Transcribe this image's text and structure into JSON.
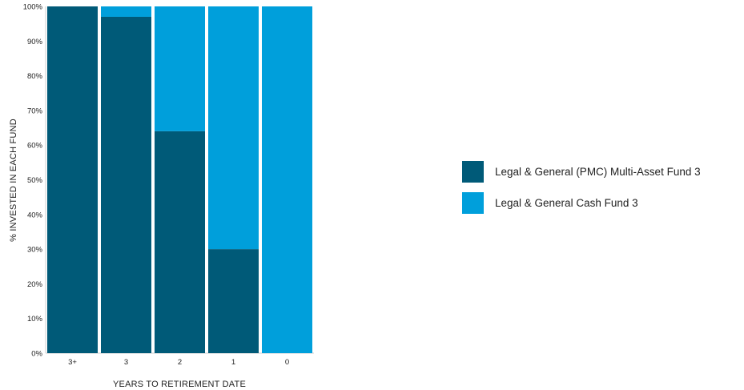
{
  "chart_data": {
    "type": "bar",
    "stacked": true,
    "categories": [
      "3+",
      "3",
      "2",
      "1",
      "0"
    ],
    "series": [
      {
        "name": "Legal & General (PMC) Multi-Asset Fund 3",
        "color": "#005a78",
        "values": [
          100,
          97,
          64,
          30,
          0
        ]
      },
      {
        "name": "Legal & General Cash Fund 3",
        "color": "#009fdb",
        "values": [
          0,
          3,
          36,
          70,
          100
        ]
      }
    ],
    "y_ticks": [
      "0%",
      "10%",
      "20%",
      "30%",
      "40%",
      "50%",
      "60%",
      "70%",
      "80%",
      "90%",
      "100%"
    ],
    "xlabel": "YEARS TO RETIREMENT DATE",
    "ylabel": "% INVESTED IN EACH FUND",
    "ylim": [
      0,
      100
    ],
    "grid": false,
    "legend_position": "right"
  }
}
